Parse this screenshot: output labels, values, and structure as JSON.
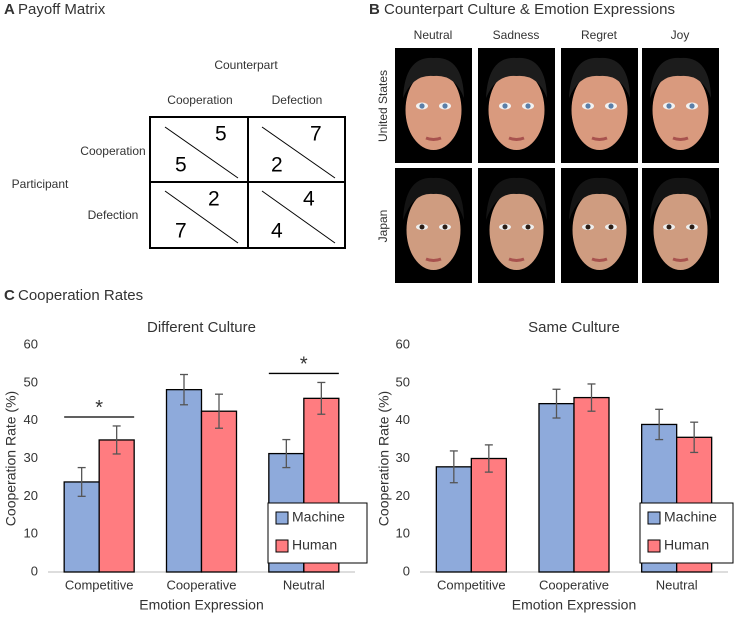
{
  "panel_a": {
    "label": "A",
    "title": "Payoff Matrix",
    "column_header": "Counterpart",
    "row_header": "Participant",
    "columns": [
      "Cooperation",
      "Defection"
    ],
    "rows": [
      "Cooperation",
      "Defection"
    ],
    "cells": [
      [
        {
          "counterpart": 5,
          "participant": 5
        },
        {
          "counterpart": 7,
          "participant": 2
        }
      ],
      [
        {
          "counterpart": 2,
          "participant": 7
        },
        {
          "counterpart": 4,
          "participant": 4
        }
      ]
    ]
  },
  "panel_b": {
    "label": "B",
    "title": "Counterpart Culture & Emotion Expressions",
    "columns": [
      "Neutral",
      "Sadness",
      "Regret",
      "Joy"
    ],
    "rows": [
      "United States",
      "Japan"
    ]
  },
  "panel_c": {
    "label": "C",
    "title": "Cooperation Rates"
  },
  "chart_data": [
    {
      "type": "bar",
      "title": "Different Culture",
      "x_label": "Emotion Expression",
      "y_label": "Cooperation Rate (%)",
      "categories": [
        "Competitive",
        "Cooperative",
        "Neutral"
      ],
      "series": [
        {
          "name": "Machine",
          "color": "#8eaadb",
          "values": [
            23.8,
            48.2,
            31.3
          ],
          "errors": [
            3.8,
            4.0,
            3.7
          ]
        },
        {
          "name": "Human",
          "color": "#ff7c80",
          "values": [
            34.9,
            42.5,
            45.9
          ],
          "errors": [
            3.7,
            4.5,
            4.2
          ]
        }
      ],
      "ylim": [
        0,
        60
      ],
      "yticks": [
        0,
        10,
        20,
        30,
        40,
        50,
        60
      ],
      "grid": false,
      "legend_position": "lower right",
      "annotations": [
        {
          "text": "*",
          "category": "Competitive"
        },
        {
          "text": "*",
          "category": "Neutral"
        }
      ]
    },
    {
      "type": "bar",
      "title": "Same Culture",
      "x_label": "Emotion Expression",
      "y_label": "Cooperation Rate (%)",
      "categories": [
        "Competitive",
        "Cooperative",
        "Neutral"
      ],
      "series": [
        {
          "name": "Machine",
          "color": "#8eaadb",
          "values": [
            27.8,
            44.5,
            39.0
          ],
          "errors": [
            4.2,
            3.8,
            4.0
          ]
        },
        {
          "name": "Human",
          "color": "#ff7c80",
          "values": [
            30.0,
            46.1,
            35.6
          ],
          "errors": [
            3.6,
            3.6,
            4.0
          ]
        }
      ],
      "ylim": [
        0,
        60
      ],
      "yticks": [
        0,
        10,
        20,
        30,
        40,
        50,
        60
      ],
      "grid": false,
      "legend_position": "lower right"
    }
  ]
}
